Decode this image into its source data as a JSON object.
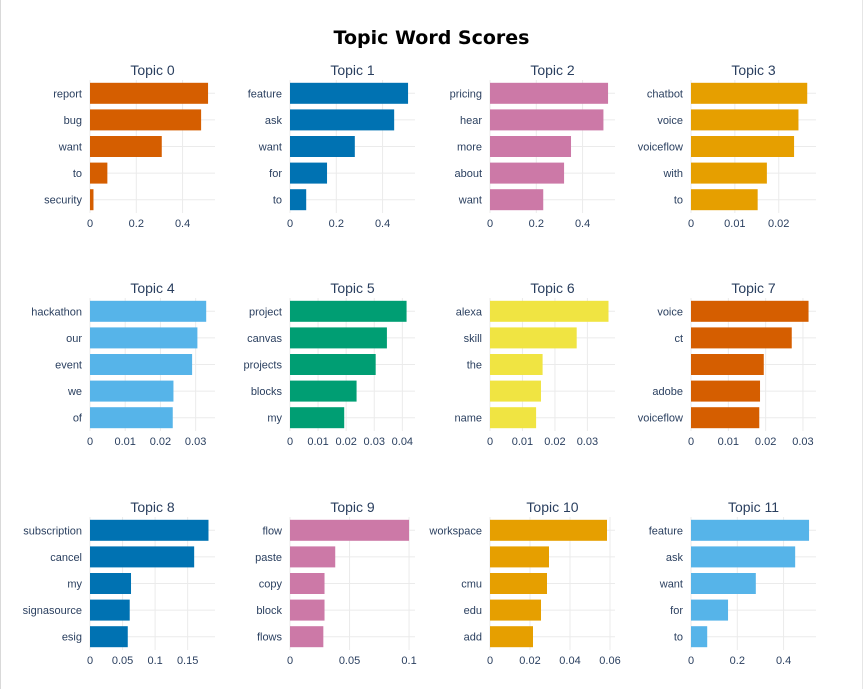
{
  "title": "Topic Word Scores",
  "chart_data": [
    {
      "type": "bar",
      "orientation": "horizontal",
      "title": "Topic 0",
      "color": "#D55E00",
      "categories": [
        "report",
        "bug",
        "want",
        "to",
        "security"
      ],
      "values": [
        0.51,
        0.48,
        0.31,
        0.075,
        0.015
      ],
      "xlim": [
        0,
        0.54
      ],
      "xticks": [
        0,
        0.2,
        0.4
      ],
      "xtick_labels": [
        "0",
        "0.2",
        "0.4"
      ]
    },
    {
      "type": "bar",
      "orientation": "horizontal",
      "title": "Topic 1",
      "color": "#0072B2",
      "categories": [
        "feature",
        "ask",
        "want",
        "for",
        "to"
      ],
      "values": [
        0.51,
        0.45,
        0.28,
        0.16,
        0.07
      ],
      "xlim": [
        0,
        0.54
      ],
      "xticks": [
        0,
        0.2,
        0.4
      ],
      "xtick_labels": [
        "0",
        "0.2",
        "0.4"
      ]
    },
    {
      "type": "bar",
      "orientation": "horizontal",
      "title": "Topic 2",
      "color": "#CC79A7",
      "categories": [
        "pricing",
        "hear",
        "more",
        "about",
        "want"
      ],
      "values": [
        0.51,
        0.49,
        0.35,
        0.32,
        0.23
      ],
      "xlim": [
        0,
        0.54
      ],
      "xticks": [
        0,
        0.2,
        0.4
      ],
      "xtick_labels": [
        "0",
        "0.2",
        "0.4"
      ]
    },
    {
      "type": "bar",
      "orientation": "horizontal",
      "title": "Topic 3",
      "color": "#E69F00",
      "categories": [
        "chatbot",
        "voice",
        "voiceflow",
        "with",
        "to"
      ],
      "values": [
        0.0265,
        0.0245,
        0.0235,
        0.0173,
        0.0152
      ],
      "xlim": [
        0,
        0.0285
      ],
      "xticks": [
        0,
        0.01,
        0.02
      ],
      "xtick_labels": [
        "0",
        "0.01",
        "0.02"
      ]
    },
    {
      "type": "bar",
      "orientation": "horizontal",
      "title": "Topic 4",
      "color": "#56B4E9",
      "categories": [
        "hackathon",
        "our",
        "event",
        "we",
        "of"
      ],
      "values": [
        0.033,
        0.0305,
        0.029,
        0.0237,
        0.0235
      ],
      "xlim": [
        0,
        0.0355
      ],
      "xticks": [
        0,
        0.01,
        0.02,
        0.03
      ],
      "xtick_labels": [
        "0",
        "0.01",
        "0.02",
        "0.03"
      ]
    },
    {
      "type": "bar",
      "orientation": "horizontal",
      "title": "Topic 5",
      "color": "#009E73",
      "categories": [
        "project",
        "canvas",
        "projects",
        "blocks",
        "my"
      ],
      "values": [
        0.0415,
        0.0345,
        0.0305,
        0.0237,
        0.0193
      ],
      "xlim": [
        0,
        0.0445
      ],
      "xticks": [
        0,
        0.01,
        0.02,
        0.03,
        0.04
      ],
      "xtick_labels": [
        "0",
        "0.01",
        "0.02",
        "0.03",
        "0.04"
      ]
    },
    {
      "type": "bar",
      "orientation": "horizontal",
      "title": "Topic 6",
      "color": "#F0E442",
      "categories": [
        "alexa",
        "skill",
        "the",
        "",
        "name"
      ],
      "values": [
        0.0365,
        0.0267,
        0.0162,
        0.0157,
        0.0142
      ],
      "xlim": [
        0,
        0.0385
      ],
      "xticks": [
        0,
        0.01,
        0.02,
        0.03
      ],
      "xtick_labels": [
        "0",
        "0.01",
        "0.02",
        "0.03"
      ]
    },
    {
      "type": "bar",
      "orientation": "horizontal",
      "title": "Topic 7",
      "color": "#D55E00",
      "categories": [
        "voice",
        "ct",
        "",
        "adobe",
        "voiceflow"
      ],
      "values": [
        0.0315,
        0.027,
        0.0195,
        0.0185,
        0.0183
      ],
      "xlim": [
        0,
        0.0335
      ],
      "xticks": [
        0,
        0.01,
        0.02,
        0.03
      ],
      "xtick_labels": [
        "0",
        "0.01",
        "0.02",
        "0.03"
      ]
    },
    {
      "type": "bar",
      "orientation": "horizontal",
      "title": "Topic 8",
      "color": "#0072B2",
      "categories": [
        "subscription",
        "cancel",
        "my",
        "signasource",
        "esig"
      ],
      "values": [
        0.182,
        0.16,
        0.063,
        0.061,
        0.058
      ],
      "xlim": [
        0,
        0.192
      ],
      "xticks": [
        0,
        0.05,
        0.1,
        0.15
      ],
      "xtick_labels": [
        "0",
        "0.05",
        "0.1",
        "0.15"
      ]
    },
    {
      "type": "bar",
      "orientation": "horizontal",
      "title": "Topic 9",
      "color": "#CC79A7",
      "categories": [
        "flow",
        "paste",
        "copy",
        "block",
        "flows"
      ],
      "values": [
        0.1,
        0.038,
        0.029,
        0.029,
        0.028
      ],
      "xlim": [
        0,
        0.105
      ],
      "xticks": [
        0,
        0.05,
        0.1
      ],
      "xtick_labels": [
        "0",
        "0.05",
        "0.1"
      ]
    },
    {
      "type": "bar",
      "orientation": "horizontal",
      "title": "Topic 10",
      "color": "#E69F00",
      "categories": [
        "workspace",
        "",
        "cmu",
        "edu",
        "add"
      ],
      "values": [
        0.0585,
        0.0295,
        0.0285,
        0.0255,
        0.0215
      ],
      "xlim": [
        0,
        0.0625
      ],
      "xticks": [
        0,
        0.02,
        0.04,
        0.06
      ],
      "xtick_labels": [
        "0",
        "0.02",
        "0.04",
        "0.06"
      ]
    },
    {
      "type": "bar",
      "orientation": "horizontal",
      "title": "Topic 11",
      "color": "#56B4E9",
      "categories": [
        "feature",
        "ask",
        "want",
        "for",
        "to"
      ],
      "values": [
        0.51,
        0.45,
        0.28,
        0.16,
        0.07
      ],
      "xlim": [
        0,
        0.54
      ],
      "xticks": [
        0,
        0.2,
        0.4
      ],
      "xtick_labels": [
        "0",
        "0.2",
        "0.4"
      ]
    }
  ]
}
